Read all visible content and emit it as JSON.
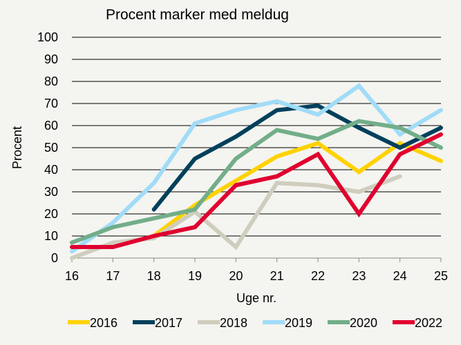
{
  "chart_data": {
    "type": "line",
    "title": "Procent marker med meldug",
    "xlabel": "Uge nr.",
    "ylabel": "Procent",
    "xlim": [
      16,
      25
    ],
    "ylim": [
      0,
      100
    ],
    "x_ticks": [
      16,
      17,
      18,
      19,
      20,
      21,
      22,
      23,
      24,
      25
    ],
    "y_ticks": [
      0,
      10,
      20,
      30,
      40,
      50,
      60,
      70,
      80,
      90,
      100
    ],
    "grid": "horizontal",
    "legend_position": "bottom",
    "series": [
      {
        "name": "2016",
        "color": "#ffd200",
        "x": [
          18,
          19,
          20,
          21,
          22,
          23,
          24,
          25
        ],
        "values": [
          10,
          24,
          35,
          46,
          52,
          39,
          52,
          44
        ]
      },
      {
        "name": "2017",
        "color": "#00405c",
        "x": [
          18,
          19,
          20,
          21,
          22,
          23,
          24,
          25
        ],
        "values": [
          22,
          45,
          55,
          67,
          69,
          59,
          50,
          59
        ]
      },
      {
        "name": "2018",
        "color": "#cfcdbd",
        "x": [
          16,
          17,
          18,
          19,
          20,
          21,
          22,
          23,
          24
        ],
        "values": [
          0,
          7,
          9,
          21,
          5,
          34,
          33,
          30,
          37
        ]
      },
      {
        "name": "2019",
        "color": "#a0dcf8",
        "x": [
          16,
          17,
          18,
          19,
          20,
          21,
          22,
          23,
          24,
          25
        ],
        "values": [
          3,
          16,
          34,
          61,
          67,
          71,
          65,
          78,
          56,
          67
        ]
      },
      {
        "name": "2020",
        "color": "#72ae89",
        "x": [
          16,
          17,
          18,
          19,
          20,
          21,
          22,
          23,
          24,
          25
        ],
        "values": [
          7,
          14,
          18,
          22,
          45,
          58,
          54,
          62,
          59,
          50
        ]
      },
      {
        "name": "2022",
        "color": "#e0002f",
        "x": [
          16,
          17,
          18,
          19,
          20,
          21,
          22,
          23,
          24,
          25
        ],
        "values": [
          5,
          5,
          10,
          14,
          33,
          37,
          47,
          20,
          47,
          56
        ]
      }
    ]
  }
}
